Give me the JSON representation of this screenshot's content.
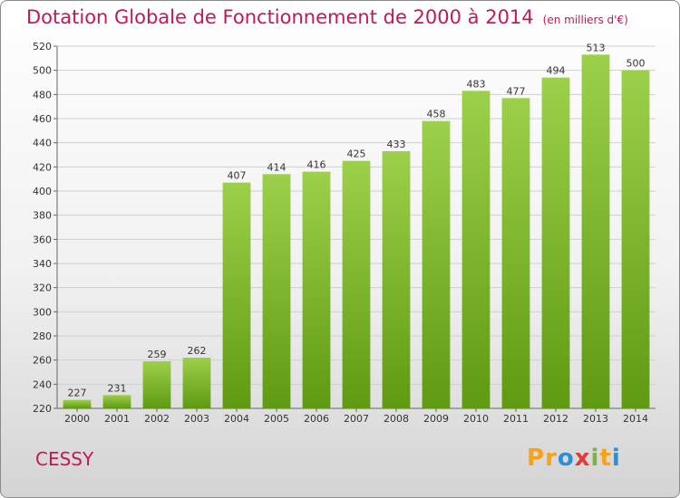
{
  "chart_data": {
    "type": "bar",
    "title": "Dotation Globale de Fonctionnement de 2000 à 2014",
    "subtitle": "(en milliers d'€)",
    "categories": [
      "2000",
      "2001",
      "2002",
      "2003",
      "2004",
      "2005",
      "2006",
      "2007",
      "2008",
      "2009",
      "2010",
      "2011",
      "2012",
      "2013",
      "2014"
    ],
    "values": [
      227,
      231,
      259,
      262,
      407,
      414,
      416,
      425,
      433,
      458,
      483,
      477,
      494,
      513,
      500
    ],
    "ylim": [
      220,
      520
    ],
    "yticks": [
      220,
      240,
      260,
      280,
      300,
      320,
      340,
      360,
      380,
      400,
      420,
      440,
      460,
      480,
      500,
      520
    ],
    "xlabel": "",
    "ylabel": "",
    "grid": true,
    "colors": {
      "bar_top": "#9dd04a",
      "bar_bottom": "#5f9a12",
      "label": "#333333",
      "grid": "#cfcfcf"
    }
  },
  "commune": "CESSY",
  "brand": {
    "letters": [
      "P",
      "r",
      "o",
      "x",
      "i",
      "t",
      "i"
    ],
    "colors": [
      "#f7a21b",
      "#f7a21b",
      "#2e8fd6",
      "#e53935",
      "#7cb342",
      "#f7a21b",
      "#2e8fd6"
    ]
  }
}
